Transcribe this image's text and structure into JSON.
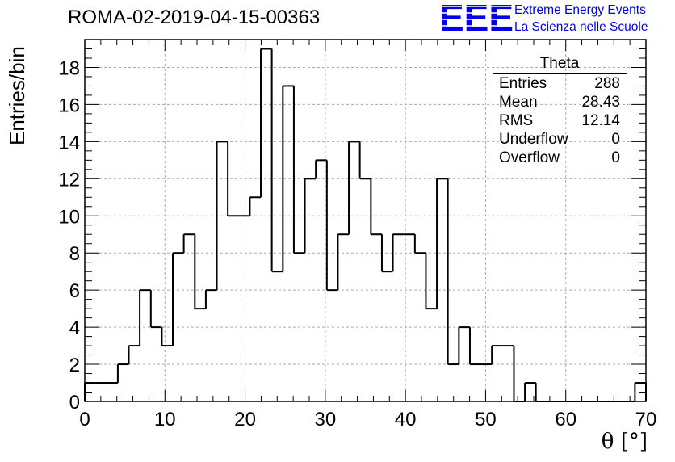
{
  "header": {
    "run_title": "ROMA-02-2019-04-15-00363",
    "logo_letters": "EEE",
    "logo_line1": "Extreme Energy Events",
    "logo_line2": "La Scienza nelle Scuole"
  },
  "colors": {
    "logo": "#0000ee",
    "line": "#000000",
    "grid": "#aaaaaa"
  },
  "stats": {
    "title": "Theta",
    "rows": [
      {
        "label": "Entries",
        "value": "288"
      },
      {
        "label": "Mean",
        "value": "28.43"
      },
      {
        "label": "RMS",
        "value": "12.14"
      },
      {
        "label": "Underflow",
        "value": "0"
      },
      {
        "label": "Overflow",
        "value": "0"
      }
    ]
  },
  "chart_data": {
    "type": "bar",
    "style": "step histogram",
    "xlabel": "θ [°]",
    "ylabel": "Entries/bin",
    "xlim": [
      0,
      70
    ],
    "ylim": [
      0,
      19.5
    ],
    "x_ticks": [
      0,
      10,
      20,
      30,
      40,
      50,
      60,
      70
    ],
    "y_ticks": [
      0,
      2,
      4,
      6,
      8,
      10,
      12,
      14,
      16,
      18
    ],
    "grid": true,
    "bin_edges": [
      0,
      1.37,
      2.75,
      4.12,
      5.49,
      6.86,
      8.24,
      9.61,
      10.98,
      12.35,
      13.73,
      15.1,
      16.47,
      17.84,
      19.22,
      20.59,
      21.96,
      23.33,
      24.71,
      26.08,
      27.45,
      28.82,
      30.2,
      31.57,
      32.94,
      34.31,
      35.69,
      37.06,
      38.43,
      39.8,
      41.18,
      42.55,
      43.92,
      45.29,
      46.67,
      48.04,
      49.41,
      50.78,
      52.16,
      53.53,
      54.9,
      56.27,
      57.65,
      59.02,
      60.39,
      61.76,
      63.14,
      64.51,
      65.88,
      67.25,
      68.63,
      70
    ],
    "values": [
      1,
      1,
      1,
      2,
      3,
      6,
      4,
      3,
      8,
      9,
      5,
      6,
      14,
      10,
      10,
      11,
      19,
      7,
      17,
      8,
      12,
      13,
      6,
      9,
      14,
      12,
      9,
      7,
      9,
      9,
      8,
      5,
      12,
      2,
      4,
      2,
      2,
      3,
      3,
      0,
      1,
      0,
      0,
      0,
      0,
      0,
      0,
      0,
      0,
      0,
      1
    ]
  }
}
